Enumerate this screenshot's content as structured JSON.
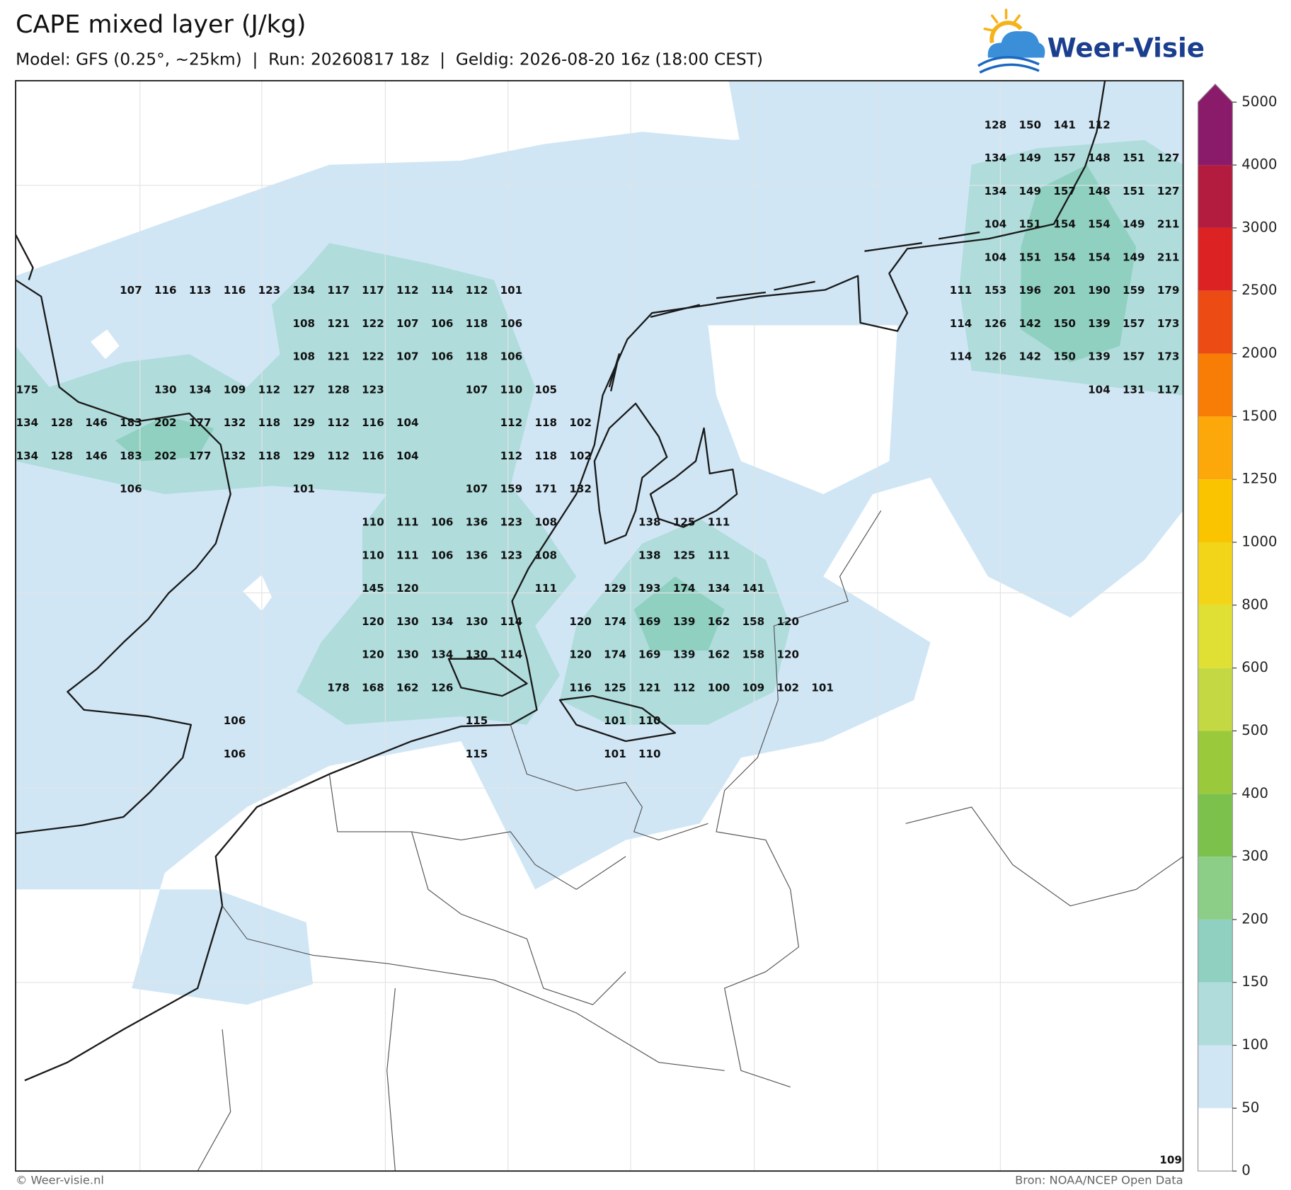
{
  "header": {
    "title": "CAPE mixed layer (J/kg)",
    "subtitle": "Model: GFS (0.25°, ~25km)  |  Run: 20260817 18z  |  Geldig: 2026-08-20 16z (18:00 CEST)",
    "logo": "Weer-Visie"
  },
  "footer": {
    "left": "© Weer-visie.nl",
    "right": "Bron: NOAA/NCEP Open Data"
  },
  "colorbar": {
    "levels": [
      0,
      50,
      100,
      150,
      200,
      300,
      400,
      500,
      600,
      800,
      1000,
      1250,
      1500,
      2000,
      2500,
      3000,
      4000,
      5000
    ],
    "colors": [
      "#ffffff",
      "#d0e6f5",
      "#b0dcdc",
      "#8fd0c0",
      "#8cce88",
      "#7cc14c",
      "#9bc93c",
      "#c4d844",
      "#dfe033",
      "#f2d519",
      "#fbc400",
      "#fca80a",
      "#f87d06",
      "#ec4c14",
      "#dc2222",
      "#b31c3e",
      "#8a1b6b"
    ],
    "extend": "max"
  },
  "values": {
    "rows": [
      [
        null,
        null,
        null,
        null,
        null,
        null,
        null,
        null,
        null,
        null,
        null,
        null,
        null,
        null,
        null,
        null,
        null,
        null,
        null,
        null,
        null,
        null,
        null,
        null,
        null,
        null,
        null,
        null,
        128,
        150,
        141,
        112,
        null,
        null
      ],
      [
        null,
        null,
        null,
        null,
        null,
        null,
        null,
        null,
        null,
        null,
        null,
        null,
        null,
        null,
        null,
        null,
        null,
        null,
        null,
        null,
        null,
        null,
        null,
        null,
        null,
        null,
        null,
        null,
        134,
        149,
        157,
        148,
        151,
        127
      ],
      [
        null,
        null,
        null,
        null,
        null,
        null,
        null,
        null,
        null,
        null,
        null,
        null,
        null,
        null,
        null,
        null,
        null,
        null,
        null,
        null,
        null,
        null,
        null,
        null,
        null,
        null,
        null,
        null,
        134,
        149,
        157,
        148,
        151,
        127
      ],
      [
        null,
        null,
        null,
        null,
        null,
        null,
        null,
        null,
        null,
        null,
        null,
        null,
        null,
        null,
        null,
        null,
        null,
        null,
        null,
        null,
        null,
        null,
        null,
        null,
        null,
        null,
        null,
        null,
        104,
        151,
        154,
        154,
        149,
        211
      ],
      [
        null,
        null,
        null,
        null,
        null,
        null,
        null,
        null,
        null,
        null,
        null,
        null,
        null,
        null,
        null,
        null,
        null,
        null,
        null,
        null,
        null,
        null,
        null,
        null,
        null,
        null,
        null,
        null,
        104,
        151,
        154,
        154,
        149,
        211
      ],
      [
        null,
        null,
        null,
        107,
        116,
        113,
        116,
        123,
        134,
        117,
        117,
        112,
        114,
        112,
        101,
        null,
        null,
        null,
        null,
        null,
        null,
        null,
        null,
        null,
        null,
        null,
        null,
        111,
        153,
        196,
        201,
        190,
        159,
        179
      ],
      [
        null,
        null,
        null,
        null,
        null,
        null,
        null,
        null,
        108,
        121,
        122,
        107,
        106,
        118,
        106,
        null,
        null,
        null,
        null,
        null,
        null,
        null,
        null,
        null,
        null,
        null,
        null,
        114,
        126,
        142,
        150,
        139,
        157,
        173
      ],
      [
        null,
        null,
        null,
        null,
        null,
        null,
        null,
        null,
        108,
        121,
        122,
        107,
        106,
        118,
        106,
        null,
        null,
        null,
        null,
        null,
        null,
        null,
        null,
        null,
        null,
        null,
        null,
        114,
        126,
        142,
        150,
        139,
        157,
        173
      ],
      [
        175,
        null,
        null,
        null,
        130,
        134,
        109,
        112,
        127,
        128,
        123,
        null,
        null,
        107,
        110,
        105,
        null,
        null,
        null,
        null,
        null,
        null,
        null,
        null,
        null,
        null,
        null,
        null,
        null,
        null,
        null,
        104,
        131,
        117
      ],
      [
        134,
        128,
        146,
        183,
        202,
        177,
        132,
        118,
        129,
        112,
        116,
        104,
        null,
        null,
        112,
        118,
        102,
        null,
        null,
        null,
        null,
        null,
        null,
        null,
        null,
        null,
        null,
        null,
        null,
        null,
        null,
        null,
        null,
        null
      ],
      [
        134,
        128,
        146,
        183,
        202,
        177,
        132,
        118,
        129,
        112,
        116,
        104,
        null,
        null,
        112,
        118,
        102,
        null,
        null,
        null,
        null,
        null,
        null,
        null,
        null,
        null,
        null,
        null,
        null,
        null,
        null,
        null,
        null,
        null
      ],
      [
        null,
        null,
        null,
        106,
        null,
        null,
        null,
        null,
        101,
        null,
        null,
        null,
        null,
        107,
        159,
        171,
        132,
        null,
        null,
        null,
        null,
        null,
        null,
        null,
        null,
        null,
        null,
        null,
        null,
        null,
        null,
        null,
        null,
        null
      ],
      [
        null,
        null,
        null,
        null,
        null,
        null,
        null,
        null,
        null,
        null,
        110,
        111,
        106,
        136,
        123,
        108,
        null,
        null,
        138,
        125,
        111,
        null,
        null,
        null,
        null,
        null,
        null,
        null,
        null,
        null,
        null,
        null,
        null,
        null
      ],
      [
        null,
        null,
        null,
        null,
        null,
        null,
        null,
        null,
        null,
        null,
        110,
        111,
        106,
        136,
        123,
        108,
        null,
        null,
        138,
        125,
        111,
        null,
        null,
        null,
        null,
        null,
        null,
        null,
        null,
        null,
        null,
        null,
        null,
        null
      ],
      [
        null,
        null,
        null,
        null,
        null,
        null,
        null,
        null,
        null,
        null,
        145,
        120,
        null,
        null,
        null,
        111,
        null,
        129,
        193,
        174,
        134,
        141,
        null,
        null,
        null,
        null,
        null,
        null,
        null,
        null,
        null,
        null,
        null,
        null
      ],
      [
        null,
        null,
        null,
        null,
        null,
        null,
        null,
        null,
        null,
        null,
        120,
        130,
        134,
        130,
        114,
        null,
        120,
        174,
        169,
        139,
        162,
        158,
        120,
        null,
        null,
        null,
        null,
        null,
        null,
        null,
        null,
        null,
        null,
        null
      ],
      [
        null,
        null,
        null,
        null,
        null,
        null,
        null,
        null,
        null,
        null,
        120,
        130,
        134,
        130,
        114,
        null,
        120,
        174,
        169,
        139,
        162,
        158,
        120,
        null,
        null,
        null,
        null,
        null,
        null,
        null,
        null,
        null,
        null,
        null
      ],
      [
        null,
        null,
        null,
        null,
        null,
        null,
        null,
        null,
        null,
        178,
        168,
        162,
        126,
        null,
        null,
        null,
        116,
        125,
        121,
        112,
        100,
        109,
        102,
        101,
        null,
        null,
        null,
        null,
        null,
        null,
        null,
        null,
        null,
        null
      ],
      [
        null,
        null,
        null,
        null,
        null,
        null,
        106,
        null,
        null,
        null,
        null,
        null,
        null,
        115,
        null,
        null,
        null,
        101,
        110,
        null,
        null,
        null,
        null,
        null,
        null,
        null,
        null,
        null,
        null,
        null,
        null,
        null,
        null,
        null
      ],
      [
        null,
        null,
        null,
        null,
        null,
        null,
        106,
        null,
        null,
        null,
        null,
        null,
        null,
        115,
        null,
        null,
        null,
        101,
        110,
        null,
        null,
        null,
        null,
        null,
        null,
        null,
        null,
        null,
        null,
        null,
        null,
        null,
        null,
        null
      ]
    ],
    "edge_values": [
      109
    ]
  }
}
